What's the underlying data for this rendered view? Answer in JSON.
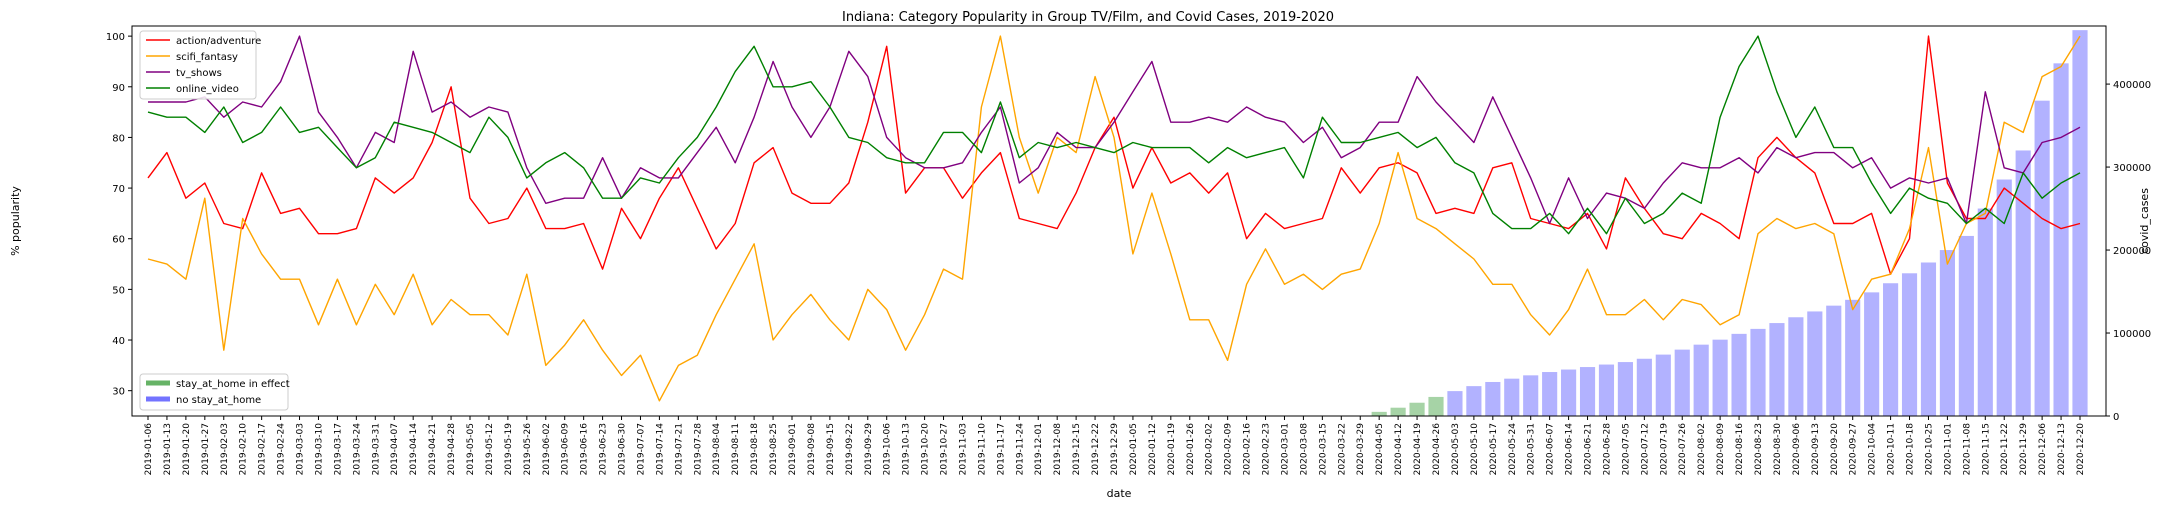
{
  "chart_data": {
    "type": "line",
    "title": "Indiana: Category Popularity in Group TV/Film, and Covid Cases, 2019-2020",
    "xlabel": "date",
    "ylabel": "% popularity",
    "y2label": "covid_cases",
    "ylim": [
      25,
      102
    ],
    "yticks": [
      30,
      40,
      50,
      60,
      70,
      80,
      90,
      100
    ],
    "y2lim": [
      0,
      470000
    ],
    "y2ticks": [
      0,
      100000,
      200000,
      300000,
      400000
    ],
    "y2ticklabels": [
      "0",
      "100000",
      "200000",
      "300000",
      "400000"
    ],
    "legend_position": "top-left",
    "legend2_position": "bottom-left",
    "grid": false,
    "x": [
      "2019-01-06",
      "2019-01-13",
      "2019-01-20",
      "2019-01-27",
      "2019-02-03",
      "2019-02-10",
      "2019-02-17",
      "2019-02-24",
      "2019-03-03",
      "2019-03-10",
      "2019-03-17",
      "2019-03-24",
      "2019-03-31",
      "2019-04-07",
      "2019-04-14",
      "2019-04-21",
      "2019-04-28",
      "2019-05-05",
      "2019-05-12",
      "2019-05-19",
      "2019-05-26",
      "2019-06-02",
      "2019-06-09",
      "2019-06-16",
      "2019-06-23",
      "2019-06-30",
      "2019-07-07",
      "2019-07-14",
      "2019-07-21",
      "2019-07-28",
      "2019-08-04",
      "2019-08-11",
      "2019-08-18",
      "2019-08-25",
      "2019-09-01",
      "2019-09-08",
      "2019-09-15",
      "2019-09-22",
      "2019-09-29",
      "2019-10-06",
      "2019-10-13",
      "2019-10-20",
      "2019-10-27",
      "2019-11-03",
      "2019-11-10",
      "2019-11-17",
      "2019-11-24",
      "2019-12-01",
      "2019-12-08",
      "2019-12-15",
      "2019-12-22",
      "2019-12-29",
      "2020-01-05",
      "2020-01-12",
      "2020-01-19",
      "2020-01-26",
      "2020-02-02",
      "2020-02-09",
      "2020-02-16",
      "2020-02-23",
      "2020-03-01",
      "2020-03-08",
      "2020-03-15",
      "2020-03-22",
      "2020-03-29",
      "2020-04-05",
      "2020-04-12",
      "2020-04-19",
      "2020-04-26",
      "2020-05-03",
      "2020-05-10",
      "2020-05-17",
      "2020-05-24",
      "2020-05-31",
      "2020-06-07",
      "2020-06-14",
      "2020-06-21",
      "2020-06-28",
      "2020-07-05",
      "2020-07-12",
      "2020-07-19",
      "2020-07-26",
      "2020-08-02",
      "2020-08-09",
      "2020-08-16",
      "2020-08-23",
      "2020-08-30",
      "2020-09-06",
      "2020-09-13",
      "2020-09-20",
      "2020-09-27",
      "2020-10-04",
      "2020-10-11",
      "2020-10-18",
      "2020-10-25",
      "2020-11-01",
      "2020-11-08",
      "2020-11-15",
      "2020-11-22",
      "2020-11-29",
      "2020-12-06",
      "2020-12-13",
      "2020-12-20"
    ],
    "series": [
      {
        "name": "action/adventure",
        "color": "#ff0000",
        "values": [
          72,
          77,
          68,
          71,
          63,
          62,
          73,
          65,
          66,
          61,
          61,
          62,
          72,
          69,
          72,
          79,
          90,
          68,
          63,
          64,
          70,
          62,
          62,
          63,
          54,
          66,
          60,
          68,
          74,
          66,
          58,
          63,
          75,
          78,
          69,
          67,
          67,
          71,
          83,
          98,
          69,
          74,
          74,
          68,
          73,
          77,
          64,
          63,
          62,
          69,
          78,
          84,
          70,
          78,
          71,
          73,
          69,
          73,
          60,
          65,
          62,
          63,
          64,
          74,
          69,
          74,
          75,
          73,
          65,
          66,
          65,
          74,
          75,
          64,
          63,
          62,
          65,
          58,
          72,
          66,
          61,
          60,
          65,
          63,
          60,
          76,
          80,
          76,
          73,
          63,
          63,
          65,
          53,
          60,
          100,
          71,
          64,
          64,
          70,
          67,
          64,
          62,
          63
        ]
      },
      {
        "name": "scifi_fantasy",
        "color": "#ffa500",
        "values": [
          56,
          55,
          52,
          68,
          38,
          64,
          57,
          52,
          52,
          43,
          52,
          43,
          51,
          45,
          53,
          43,
          48,
          45,
          45,
          41,
          53,
          35,
          39,
          44,
          38,
          33,
          37,
          28,
          35,
          37,
          45,
          52,
          59,
          40,
          45,
          49,
          44,
          40,
          50,
          46,
          38,
          45,
          54,
          52,
          86,
          100,
          80,
          69,
          80,
          77,
          92,
          80,
          57,
          69,
          57,
          44,
          44,
          36,
          51,
          58,
          51,
          53,
          50,
          53,
          54,
          63,
          77,
          64,
          62,
          59,
          56,
          51,
          51,
          45,
          41,
          46,
          54,
          45,
          45,
          48,
          44,
          48,
          47,
          43,
          45,
          61,
          64,
          62,
          63,
          61,
          46,
          52,
          53,
          62,
          78,
          55,
          63,
          65,
          83,
          81,
          92,
          94,
          100
        ]
      },
      {
        "name": "tv_shows",
        "color": "#800080",
        "values": [
          87,
          87,
          87,
          88,
          84,
          87,
          86,
          91,
          100,
          85,
          80,
          74,
          81,
          79,
          97,
          85,
          87,
          84,
          86,
          85,
          74,
          67,
          68,
          68,
          76,
          68,
          74,
          72,
          72,
          77,
          82,
          75,
          84,
          95,
          86,
          80,
          86,
          97,
          92,
          80,
          76,
          74,
          74,
          75,
          81,
          86,
          71,
          74,
          81,
          78,
          78,
          83,
          89,
          95,
          83,
          83,
          84,
          83,
          86,
          84,
          83,
          79,
          82,
          76,
          78,
          83,
          83,
          92,
          87,
          83,
          79,
          88,
          80,
          72,
          63,
          72,
          64,
          69,
          68,
          66,
          71,
          75,
          74,
          74,
          76,
          73,
          78,
          76,
          77,
          77,
          74,
          76,
          70,
          72,
          71,
          72,
          63,
          89,
          74,
          73,
          79,
          80,
          82
        ]
      },
      {
        "name": "online_video",
        "color": "#008000",
        "values": [
          85,
          84,
          84,
          81,
          86,
          79,
          81,
          86,
          81,
          82,
          78,
          74,
          76,
          83,
          82,
          81,
          79,
          77,
          84,
          80,
          72,
          75,
          77,
          74,
          68,
          68,
          72,
          71,
          76,
          80,
          86,
          93,
          98,
          90,
          90,
          91,
          86,
          80,
          79,
          76,
          75,
          75,
          81,
          81,
          77,
          87,
          76,
          79,
          78,
          79,
          78,
          77,
          79,
          78,
          78,
          78,
          75,
          78,
          76,
          77,
          78,
          72,
          84,
          79,
          79,
          80,
          81,
          78,
          80,
          75,
          73,
          65,
          62,
          62,
          65,
          61,
          66,
          61,
          68,
          63,
          65,
          69,
          67,
          84,
          94,
          100,
          89,
          80,
          86,
          78,
          78,
          71,
          65,
          70,
          68,
          67,
          63,
          66,
          63,
          73,
          68,
          71,
          73
        ]
      }
    ],
    "bars": [
      {
        "name": "stay_at_home in effect",
        "color": "#008000",
        "opacity": 0.35,
        "dates": [
          "2020-04-05",
          "2020-04-12",
          "2020-04-19",
          "2020-04-26"
        ],
        "values": [
          5000,
          10000,
          16000,
          23000
        ]
      },
      {
        "name": "no stay_at_home",
        "color": "#0000ff",
        "opacity": 0.3,
        "dates": [
          "2020-05-03",
          "2020-05-10",
          "2020-05-17",
          "2020-05-24",
          "2020-05-31",
          "2020-06-07",
          "2020-06-14",
          "2020-06-21",
          "2020-06-28",
          "2020-07-05",
          "2020-07-12",
          "2020-07-19",
          "2020-07-26",
          "2020-08-02",
          "2020-08-09",
          "2020-08-16",
          "2020-08-23",
          "2020-08-30",
          "2020-09-06",
          "2020-09-13",
          "2020-09-20",
          "2020-09-27",
          "2020-10-04",
          "2020-10-11",
          "2020-10-18",
          "2020-10-25",
          "2020-11-01",
          "2020-11-08",
          "2020-11-15",
          "2020-11-22",
          "2020-11-29",
          "2020-12-06",
          "2020-12-13",
          "2020-12-20"
        ],
        "values": [
          30000,
          36000,
          41000,
          45000,
          49000,
          53000,
          56000,
          59000,
          62000,
          65000,
          69000,
          74000,
          80000,
          86000,
          92000,
          99000,
          105000,
          112000,
          119000,
          126000,
          133000,
          140000,
          149000,
          160000,
          172000,
          185000,
          200000,
          217000,
          250000,
          285000,
          320000,
          380000,
          425000,
          465000
        ]
      }
    ]
  }
}
